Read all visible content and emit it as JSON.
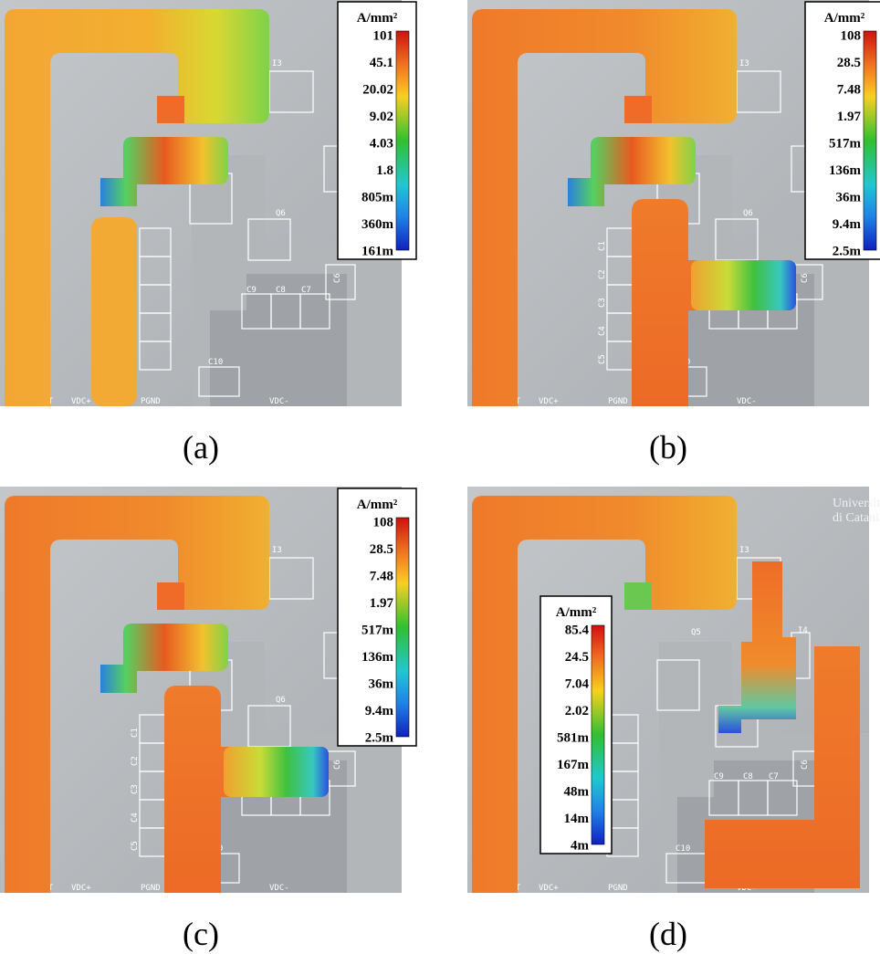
{
  "board_labels": {
    "out": "OUT",
    "vdc_plus": "VDC+",
    "pgnd": "PGND",
    "vdc_minus": "VDC-",
    "c1": "C1",
    "c2": "C2",
    "c3": "C3",
    "c4": "C4",
    "c5": "C5",
    "c6": "C6",
    "c7": "C7",
    "c8": "C8",
    "c9": "C9",
    "c10": "C10",
    "q5": "Q5",
    "q6": "Q6",
    "i3": "I3",
    "i4": "I4"
  },
  "logo": [
    "Università",
    "di Catania"
  ],
  "panels": [
    {
      "caption": "(a)",
      "colorbar": {
        "unit": "A/mm²",
        "ticks": [
          "101",
          "45.1",
          "20.02",
          "9.02",
          "4.03",
          "1.8",
          "805m",
          "360m",
          "161m"
        ]
      }
    },
    {
      "caption": "(b)",
      "colorbar": {
        "unit": "A/mm²",
        "ticks": [
          "108",
          "28.5",
          "7.48",
          "1.97",
          "517m",
          "136m",
          "36m",
          "9.4m",
          "2.5m"
        ]
      }
    },
    {
      "caption": "(c)",
      "colorbar": {
        "unit": "A/mm²",
        "ticks": [
          "108",
          "28.5",
          "7.48",
          "1.97",
          "517m",
          "136m",
          "36m",
          "9.4m",
          "2.5m"
        ]
      }
    },
    {
      "caption": "(d)",
      "colorbar": {
        "unit": "A/mm²",
        "ticks": [
          "85.4",
          "24.5",
          "7.04",
          "2.02",
          "581m",
          "167m",
          "48m",
          "14m",
          "4m"
        ]
      }
    }
  ]
}
